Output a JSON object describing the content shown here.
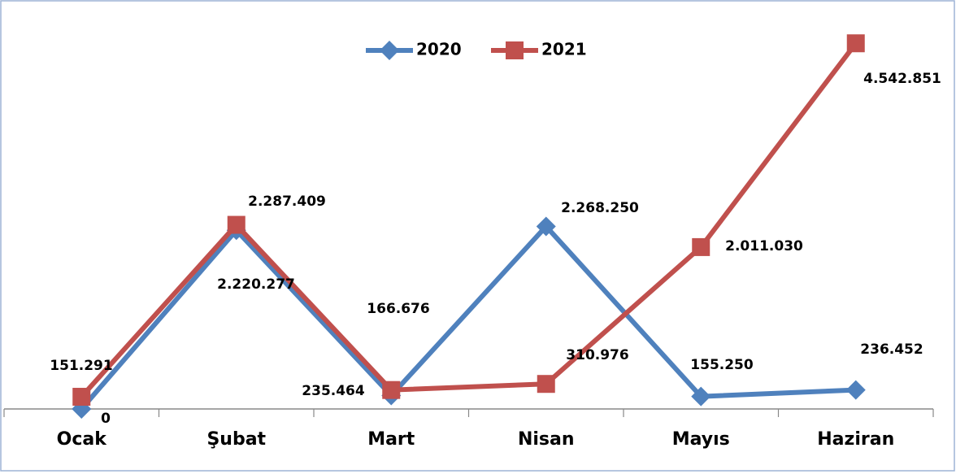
{
  "chart_data": {
    "type": "line",
    "categories": [
      "Ocak",
      "Şubat",
      "Mart",
      "Nisan",
      "Mayıs",
      "Haziran"
    ],
    "series": [
      {
        "name": "2020",
        "color": "#4f81bd",
        "marker": "diamond",
        "values": [
          0,
          2220277,
          166676,
          2268250,
          155250,
          236452
        ],
        "value_labels": [
          "0",
          "2.220.277",
          "166.676",
          "2.268.250",
          "155.250",
          "236.452"
        ]
      },
      {
        "name": "2021",
        "color": "#c0504d",
        "marker": "square",
        "values": [
          151291,
          2287409,
          235464,
          310976,
          2011030,
          4542851
        ],
        "value_labels": [
          "151.291",
          "2.287.409",
          "235.464",
          "310.976",
          "2.011.030",
          "4.542.851"
        ]
      }
    ],
    "ylim": [
      0,
      5000000
    ],
    "legend": "top"
  }
}
